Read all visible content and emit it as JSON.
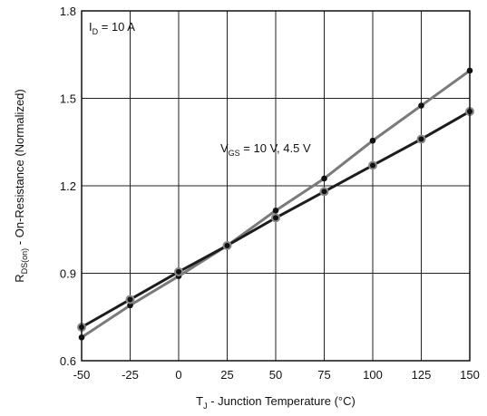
{
  "chart_data": {
    "type": "line",
    "x": [
      -50,
      -25,
      0,
      25,
      50,
      75,
      100,
      125,
      150
    ],
    "x_ticks": [
      "-50",
      "-25",
      "0",
      "25",
      "50",
      "75",
      "100",
      "125",
      "150"
    ],
    "y_ticks": [
      "0.6",
      "0.9",
      "1.2",
      "1.5",
      "1.8"
    ],
    "xlim": [
      -50,
      150
    ],
    "ylim": [
      0.6,
      1.8
    ],
    "grid": true,
    "series": [
      {
        "values": [
          0.68,
          0.79,
          0.89,
          0.995,
          1.115,
          1.225,
          1.355,
          1.475,
          1.595
        ],
        "color": "#7a7a7a"
      },
      {
        "values": [
          0.715,
          0.81,
          0.905,
          0.995,
          1.09,
          1.18,
          1.27,
          1.36,
          1.455
        ],
        "color": "#1c1c1c"
      }
    ],
    "xlabel": {
      "main": "T",
      "sub": "J",
      "rest": " - Junction Temperature (°C)"
    },
    "ylabel": {
      "main": "R",
      "sub": "DS(on)",
      "rest": " - On-Resistance (Normalized)"
    },
    "annotations": {
      "id": {
        "main": "I",
        "sub": "D",
        "rest": " = 10 A"
      },
      "vgs": {
        "main": "V",
        "sub": "GS",
        "rest": " = 10 V, 4.5 V"
      }
    }
  }
}
